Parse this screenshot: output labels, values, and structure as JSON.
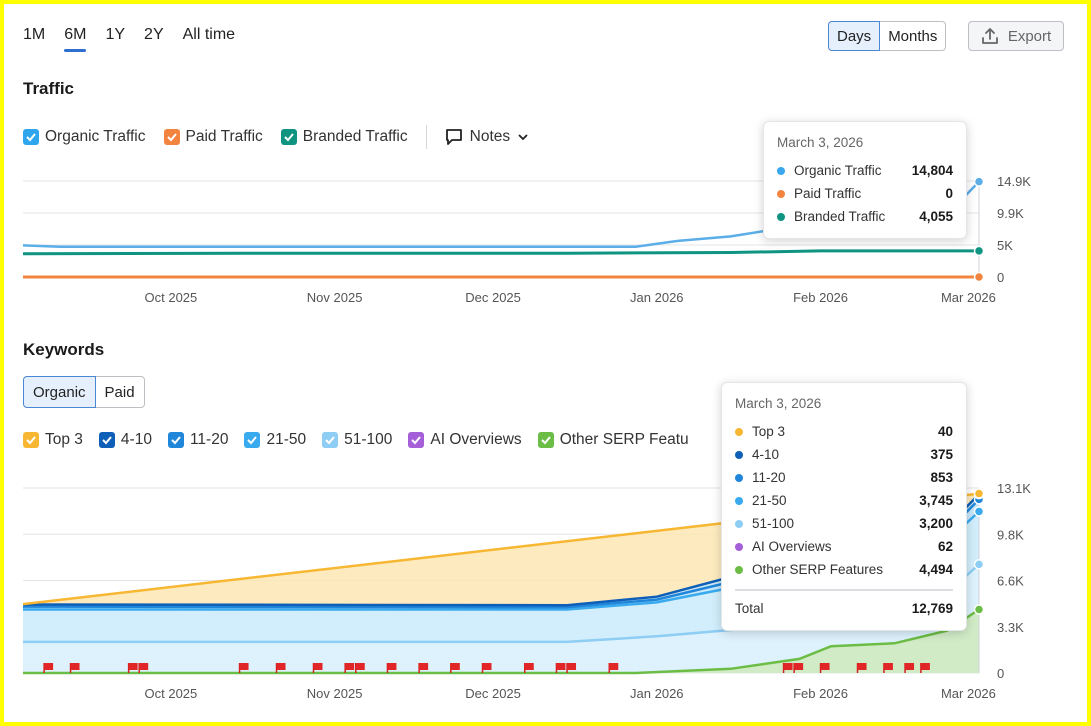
{
  "period_tabs": [
    {
      "label": "1M",
      "active": false
    },
    {
      "label": "6M",
      "active": true
    },
    {
      "label": "1Y",
      "active": false
    },
    {
      "label": "2Y",
      "active": false
    },
    {
      "label": "All time",
      "active": false
    }
  ],
  "granularity": {
    "days_label": "Days",
    "months_label": "Months",
    "selected": "Days"
  },
  "export_label": "Export",
  "traffic": {
    "title": "Traffic",
    "legend": [
      {
        "label": "Organic Traffic",
        "color": "#2ea6ee",
        "checked": true
      },
      {
        "label": "Paid Traffic",
        "color": "#f3843f",
        "checked": true
      },
      {
        "label": "Branded Traffic",
        "color": "#0e9480",
        "checked": true
      }
    ],
    "notes_label": "Notes",
    "tooltip": {
      "date": "March 3, 2026",
      "rows": [
        {
          "label": "Organic Traffic",
          "value": "14,804",
          "color": "#3aa6ee"
        },
        {
          "label": "Paid Traffic",
          "value": "0",
          "color": "#f3843f"
        },
        {
          "label": "Branded Traffic",
          "value": "4,055",
          "color": "#0e9480"
        }
      ]
    }
  },
  "keywords": {
    "title": "Keywords",
    "toggle": {
      "organic_label": "Organic",
      "paid_label": "Paid",
      "selected": "Organic"
    },
    "legend": [
      {
        "label": "Top 3",
        "color": "#f7b733",
        "checked": true
      },
      {
        "label": "4-10",
        "color": "#0d5fb8",
        "checked": true
      },
      {
        "label": "11-20",
        "color": "#1f86d9",
        "checked": true
      },
      {
        "label": "21-50",
        "color": "#39aaee",
        "checked": true
      },
      {
        "label": "51-100",
        "color": "#8ecdf4",
        "checked": true
      },
      {
        "label": "AI Overviews",
        "color": "#a55fd8",
        "checked": true
      },
      {
        "label": "Other SERP Featu",
        "color": "#6cbd45",
        "checked": true
      }
    ],
    "tooltip": {
      "date": "March 3, 2026",
      "rows": [
        {
          "label": "Top 3",
          "value": "40",
          "color": "#f7b733"
        },
        {
          "label": "4-10",
          "value": "375",
          "color": "#0d5fb8"
        },
        {
          "label": "11-20",
          "value": "853",
          "color": "#1f86d9"
        },
        {
          "label": "21-50",
          "value": "3,745",
          "color": "#39aaee"
        },
        {
          "label": "51-100",
          "value": "3,200",
          "color": "#8ecdf4"
        },
        {
          "label": "AI Overviews",
          "value": "62",
          "color": "#a55fd8"
        },
        {
          "label": "Other SERP Features",
          "value": "4,494",
          "color": "#6cbd45"
        }
      ],
      "total_label": "Total",
      "total_value": "12,769"
    }
  },
  "chart_data": [
    {
      "type": "line",
      "title": "Traffic",
      "x_tick_labels": [
        "Oct 2025",
        "Nov 2025",
        "Dec 2025",
        "Jan 2026",
        "Feb 2026",
        "Mar 2026"
      ],
      "y_tick_labels": [
        "0",
        "5K",
        "9.9K",
        "14.9K"
      ],
      "ylim": [
        0,
        14900
      ],
      "grid": true,
      "x_range": [
        "2025-09-03",
        "2026-03-03"
      ],
      "series": [
        {
          "name": "Organic Traffic",
          "color": "#5baee8",
          "points": [
            [
              "2025-09-03",
              4900
            ],
            [
              "2025-09-10",
              4700
            ],
            [
              "2025-10-15",
              4700
            ],
            [
              "2025-11-15",
              4700
            ],
            [
              "2025-12-15",
              4700
            ],
            [
              "2025-12-28",
              4700
            ],
            [
              "2026-01-05",
              5600
            ],
            [
              "2026-01-15",
              6300
            ],
            [
              "2026-01-25",
              7600
            ],
            [
              "2026-02-05",
              8600
            ],
            [
              "2026-02-15",
              9300
            ],
            [
              "2026-02-25",
              9700
            ],
            [
              "2026-03-03",
              14804
            ]
          ]
        },
        {
          "name": "Paid Traffic",
          "color": "#f3843f",
          "points": [
            [
              "2025-09-03",
              0
            ],
            [
              "2026-03-03",
              0
            ]
          ]
        },
        {
          "name": "Branded Traffic",
          "color": "#0e9480",
          "points": [
            [
              "2025-09-03",
              3600
            ],
            [
              "2025-10-15",
              3700
            ],
            [
              "2025-12-15",
              3700
            ],
            [
              "2026-01-15",
              3800
            ],
            [
              "2026-02-01",
              4050
            ],
            [
              "2026-03-03",
              4055
            ]
          ]
        }
      ]
    },
    {
      "type": "area",
      "title": "Keywords",
      "x_tick_labels": [
        "Oct 2025",
        "Nov 2025",
        "Dec 2025",
        "Jan 2026",
        "Feb 2026",
        "Mar 2026"
      ],
      "y_tick_labels": [
        "0",
        "3.3K",
        "6.6K",
        "9.8K",
        "13.1K"
      ],
      "ylim": [
        0,
        13100
      ],
      "grid": true,
      "stacked": true,
      "x_range": [
        "2025-09-03",
        "2026-03-03"
      ],
      "series": [
        {
          "name": "Other SERP Features",
          "color": "#6cbd45",
          "points": [
            [
              "2025-09-03",
              0
            ],
            [
              "2025-12-28",
              0
            ],
            [
              "2026-01-15",
              300
            ],
            [
              "2026-01-28",
              1000
            ],
            [
              "2026-02-03",
              1900
            ],
            [
              "2026-02-15",
              2100
            ],
            [
              "2026-02-25",
              3000
            ],
            [
              "2026-03-03",
              4494
            ]
          ]
        },
        {
          "name": "51-100",
          "color": "#8ecdf4",
          "points": [
            [
              "2025-09-03",
              2200
            ],
            [
              "2025-12-15",
              2200
            ],
            [
              "2026-01-01",
              2600
            ],
            [
              "2026-01-20",
              3200
            ],
            [
              "2026-02-20",
              4000
            ],
            [
              "2026-03-03",
              7694
            ]
          ]
        },
        {
          "name": "21-50",
          "color": "#39aaee",
          "points": [
            [
              "2025-09-03",
              4500
            ],
            [
              "2025-12-15",
              4500
            ],
            [
              "2026-01-01",
              5000
            ],
            [
              "2026-01-20",
              6400
            ],
            [
              "2026-02-20",
              7600
            ],
            [
              "2026-03-03",
              11439
            ]
          ]
        },
        {
          "name": "11-20",
          "color": "#1f86d9",
          "points": [
            [
              "2025-09-03",
              4700
            ],
            [
              "2025-12-15",
              4650
            ],
            [
              "2026-01-01",
              5200
            ],
            [
              "2026-01-20",
              6900
            ],
            [
              "2026-02-20",
              8100
            ],
            [
              "2026-03-03",
              12292
            ]
          ]
        },
        {
          "name": "4-10",
          "color": "#0d5fb8",
          "points": [
            [
              "2025-09-03",
              4850
            ],
            [
              "2025-12-15",
              4800
            ],
            [
              "2026-01-01",
              5400
            ],
            [
              "2026-01-20",
              7300
            ],
            [
              "2026-02-20",
              8400
            ],
            [
              "2026-03-03",
              12667
            ]
          ]
        },
        {
          "name": "Top 3",
          "color": "#f7b733",
          "points": [
            [
              "2025-09-03",
              4880
            ],
            [
              "2026-03-03",
              12707
            ]
          ]
        }
      ],
      "notes_markers": [
        "2025-09-07",
        "2025-09-12",
        "2025-09-23",
        "2025-09-25",
        "2025-10-14",
        "2025-10-21",
        "2025-10-28",
        "2025-11-03",
        "2025-11-05",
        "2025-11-11",
        "2025-11-17",
        "2025-11-23",
        "2025-11-29",
        "2025-12-07",
        "2025-12-13",
        "2025-12-15",
        "2025-12-23",
        "2026-01-25",
        "2026-01-27",
        "2026-02-01",
        "2026-02-08",
        "2026-02-13",
        "2026-02-17",
        "2026-02-20"
      ]
    }
  ]
}
